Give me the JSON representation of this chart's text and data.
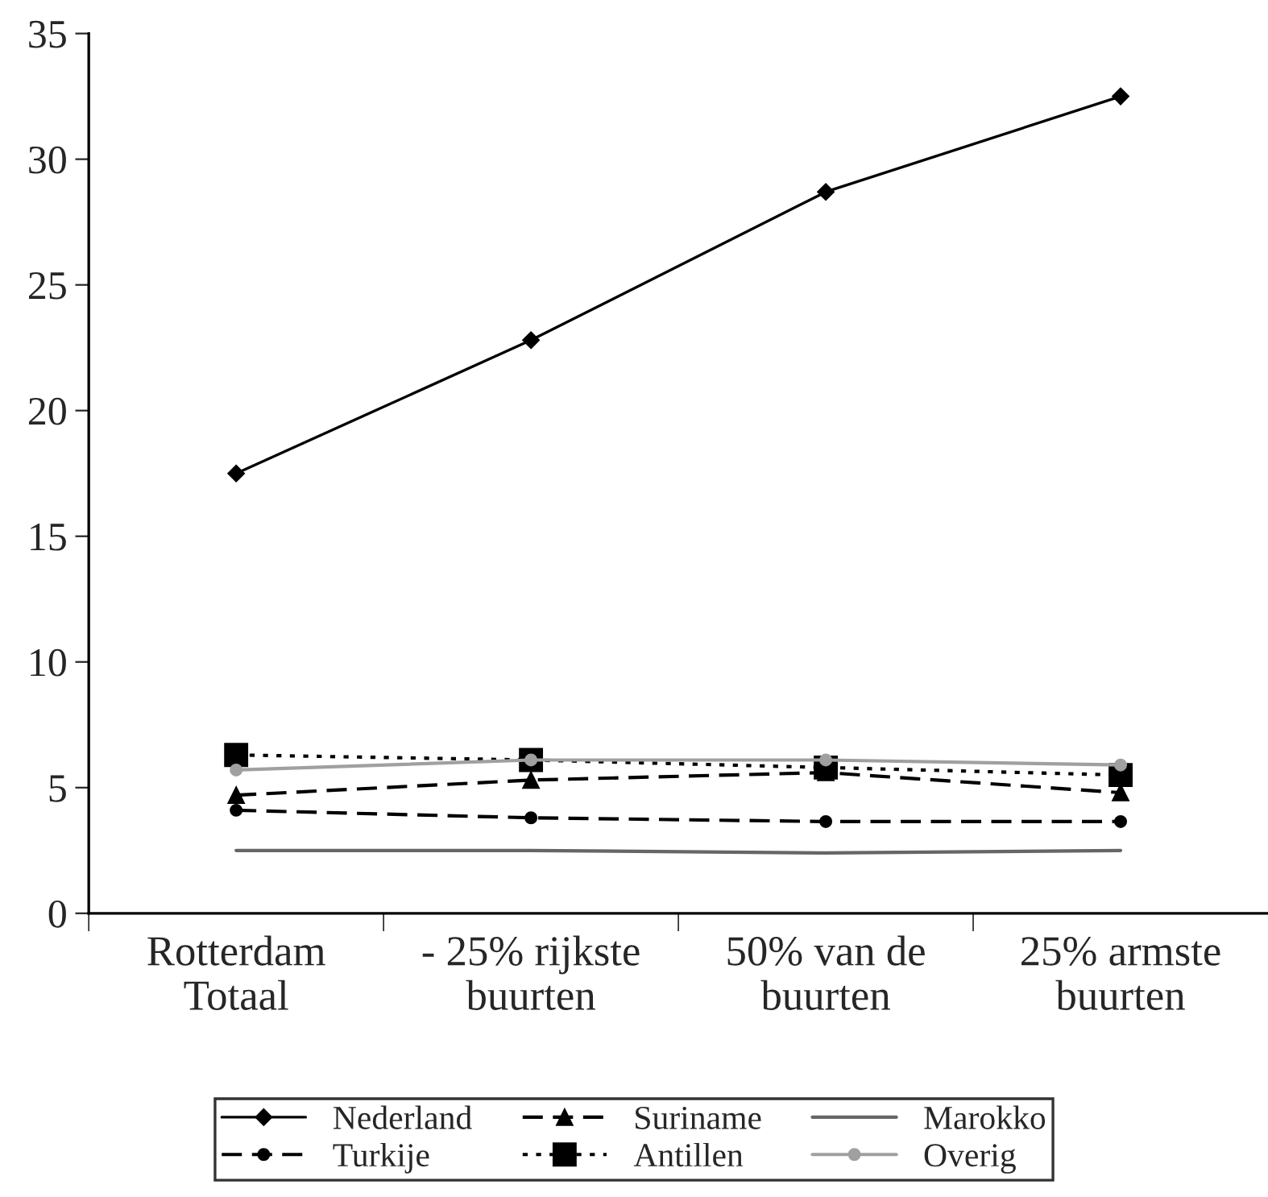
{
  "chart_data": {
    "type": "line",
    "categories": [
      "Rotterdam\nTotaal",
      "- 25% rijkste\nbuurten",
      "50% van de\nbuurten",
      "25% armste\nbuurten"
    ],
    "series": [
      {
        "name": "Nederland",
        "color": "#000000",
        "marker": "diamond",
        "line_style": "solid",
        "values": [
          17.5,
          22.8,
          28.7,
          32.5
        ]
      },
      {
        "name": "Suriname",
        "color": "#000000",
        "marker": "triangle",
        "line_style": "dashed",
        "values": [
          4.7,
          5.3,
          5.6,
          4.8
        ]
      },
      {
        "name": "Marokko",
        "color": "#666666",
        "marker": "none",
        "line_style": "solid",
        "values": [
          2.5,
          2.5,
          2.4,
          2.5
        ]
      },
      {
        "name": "Turkije",
        "color": "#000000",
        "marker": "circle",
        "line_style": "dashed",
        "values": [
          4.1,
          3.8,
          3.65,
          3.65
        ]
      },
      {
        "name": "Antillen",
        "color": "#000000",
        "marker": "square",
        "line_style": "dotted",
        "values": [
          6.3,
          6.1,
          5.8,
          5.5
        ]
      },
      {
        "name": "Overig",
        "color": "#a0a0a0",
        "marker": "circle",
        "line_style": "solid",
        "values": [
          5.7,
          6.1,
          6.1,
          5.9
        ]
      }
    ],
    "ylim": [
      0,
      35
    ],
    "yticks": [
      0,
      5,
      10,
      15,
      20,
      25,
      30,
      35
    ],
    "grid": false,
    "legend": "bottom"
  }
}
